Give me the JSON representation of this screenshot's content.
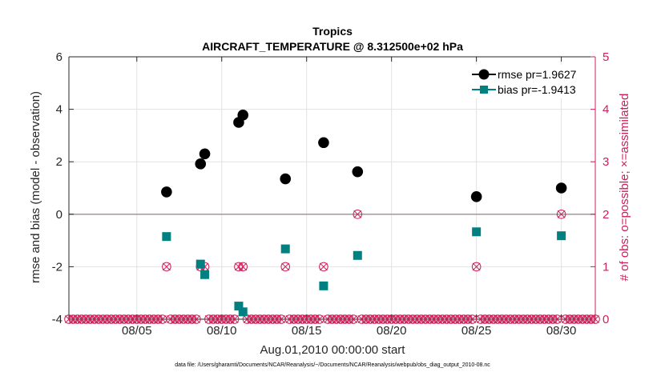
{
  "chart_data": {
    "type": "scatter",
    "title": "Tropics",
    "subtitle": "AIRCRAFT_TEMPERATURE @ 8.312500e+02 hPa",
    "xlabel": "Aug.01,2010 00:00:00 start",
    "ylabel": "rmse and bias (model - observation)",
    "y2label": "# of obs: o=possible; ×=assimilated",
    "footnote": "data file: /Users/gharamti/Documents/NCAR/Reanalysis/~/Documents/NCAR/Reanalysis/webpub/obs_diag_output_2010-08.nc",
    "xlim": [
      1,
      32
    ],
    "ylim": [
      -4,
      6
    ],
    "y2lim": [
      0,
      5
    ],
    "grid": true,
    "legend_position": "top-right",
    "xticks": [
      5,
      10,
      15,
      20,
      25,
      30
    ],
    "xticklabels": [
      "08/05",
      "08/10",
      "08/15",
      "08/20",
      "08/25",
      "08/30"
    ],
    "yticks": [
      -4,
      -2,
      0,
      2,
      4,
      6
    ],
    "yticklabels": [
      "-4",
      "-2",
      "0",
      "2",
      "4",
      "6"
    ],
    "y2ticks": [
      0,
      1,
      2,
      3,
      4,
      5
    ],
    "y2ticklabels": [
      "0",
      "1",
      "2",
      "3",
      "4",
      "5"
    ],
    "colors": {
      "rmse": "#000000",
      "bias": "#008080",
      "obs": "#cc1f5a",
      "zero": "#b09aa6",
      "grid": "#e2e2e2",
      "axis": "#262626"
    },
    "series": [
      {
        "name": "rmse pr=1.9627",
        "axis": "left",
        "marker": "circle",
        "x": [
          6.75,
          8.75,
          9.0,
          11.0,
          11.25,
          13.75,
          16.0,
          18.0,
          25.0,
          30.0
        ],
        "values": [
          0.85,
          1.92,
          2.3,
          3.5,
          3.78,
          1.35,
          2.73,
          1.62,
          0.67,
          1.0
        ]
      },
      {
        "name": "bias pr=-1.9413",
        "axis": "left",
        "marker": "square",
        "x": [
          6.75,
          8.75,
          9.0,
          11.0,
          11.25,
          13.75,
          16.0,
          18.0,
          25.0,
          30.0
        ],
        "values": [
          -0.85,
          -1.9,
          -2.3,
          -3.5,
          -3.72,
          -1.32,
          -2.73,
          -1.57,
          -0.67,
          -0.82
        ]
      },
      {
        "name": "# of obs possible",
        "axis": "right",
        "marker": "open-circle",
        "x": [
          6.75,
          8.75,
          9.0,
          11.0,
          11.25,
          13.75,
          16.0,
          18.0,
          25.0,
          30.0
        ],
        "values": [
          1,
          1,
          1,
          1,
          1,
          1,
          1,
          2,
          1,
          2
        ]
      },
      {
        "name": "# of obs assimilated",
        "axis": "right",
        "marker": "x",
        "x": [
          6.75,
          8.75,
          9.0,
          11.0,
          11.25,
          13.75,
          16.0,
          18.0,
          25.0,
          30.0
        ],
        "values": [
          1,
          1,
          1,
          1,
          1,
          1,
          1,
          2,
          1,
          2
        ]
      }
    ],
    "zero_count_step": 0.25
  }
}
